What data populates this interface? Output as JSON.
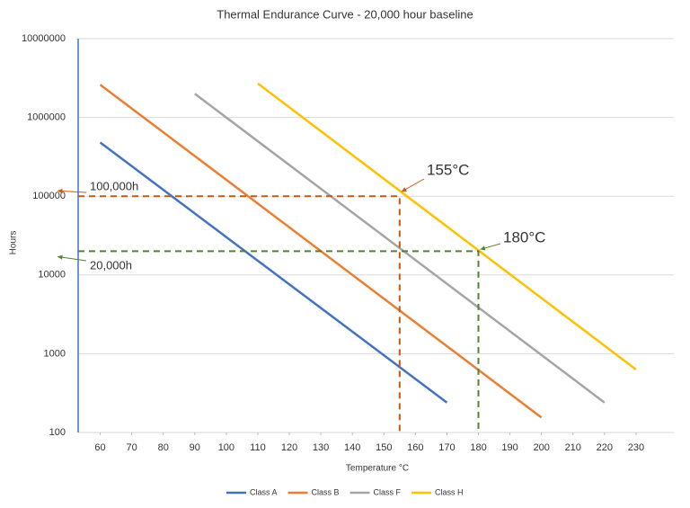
{
  "chart_data": {
    "type": "line",
    "title": "Thermal Endurance Curve - 20,000 hour baseline",
    "x_label": "Temperature °C",
    "y_label": "Hours",
    "y_scale": "log",
    "grid": true,
    "legend": "bottom",
    "xlim": [
      53,
      242
    ],
    "xticks": [
      60,
      70,
      80,
      90,
      100,
      110,
      120,
      130,
      140,
      150,
      160,
      170,
      180,
      190,
      200,
      210,
      220,
      230
    ],
    "ylim": [
      100,
      10000000
    ],
    "yticks": [
      100,
      1000,
      10000,
      100000,
      1000000,
      10000000
    ],
    "series": [
      {
        "name": "Class A",
        "color": "#4472c4",
        "x": [
          60,
          170
        ],
        "values": [
          480000,
          240
        ]
      },
      {
        "name": "Class B",
        "color": "#ed7d31",
        "x": [
          60,
          200
        ],
        "values": [
          2600000,
          155
        ]
      },
      {
        "name": "Class F",
        "color": "#a5a5a5",
        "x": [
          90,
          220
        ],
        "values": [
          2000000,
          240
        ]
      },
      {
        "name": "Class H",
        "color": "#ffc000",
        "x": [
          110,
          230
        ],
        "values": [
          2700000,
          630
        ]
      }
    ],
    "guides": [
      {
        "x": 155,
        "y": 100000,
        "color": "#c55a11",
        "x_label": "155°C",
        "y_label": "100,000h"
      },
      {
        "x": 180,
        "y": 20000,
        "color": "#548235",
        "x_label": "180°C",
        "y_label": "20,000h"
      }
    ]
  }
}
